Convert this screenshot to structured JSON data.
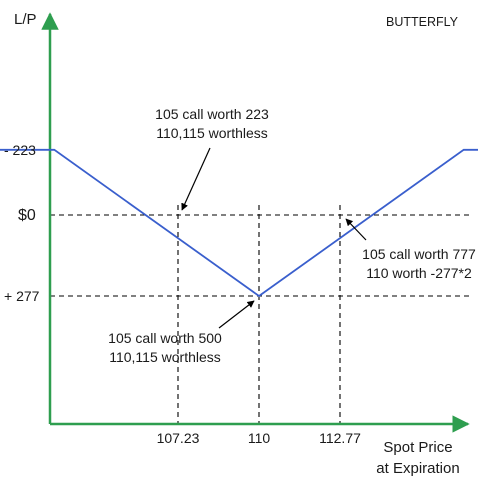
{
  "chart_data": {
    "type": "line",
    "title": "BUTTERFLY",
    "ylabel": "L/P",
    "xlabel_lines": [
      "Spot Price",
      "at Expiration"
    ],
    "x": [
      97.0,
      103.0,
      110.0,
      117.0,
      123.0
    ],
    "y": [
      -223,
      -223,
      277,
      -223,
      -223
    ],
    "y_ticks": [
      {
        "value": -223,
        "label": "- 223"
      },
      {
        "value": 0,
        "label": "$0"
      },
      {
        "value": 277,
        "label": "+ 277"
      }
    ],
    "x_ticks": [
      {
        "value": 107.23,
        "label": "107.23"
      },
      {
        "value": 110,
        "label": "110"
      },
      {
        "value": 112.77,
        "label": "112.77"
      }
    ],
    "reference_lines": {
      "horizontal": [
        0,
        277
      ],
      "vertical": [
        107.23,
        110,
        112.77
      ]
    },
    "annotations": [
      {
        "id": "breakeven-left",
        "lines": [
          "105 call worth 223",
          "110,115 worthless"
        ],
        "target": [
          107.23,
          0
        ]
      },
      {
        "id": "breakeven-right",
        "lines": [
          "105 call worth 777",
          "110 worth -277*2"
        ],
        "target": [
          112.77,
          0
        ]
      },
      {
        "id": "max-point",
        "lines": [
          "105 call worth 500",
          "110,115 worthless"
        ],
        "target": [
          110,
          277
        ]
      }
    ],
    "colors": {
      "axis": "#2e9e4f",
      "series": "#3a5fcd",
      "guide": "#000000",
      "text": "#1a1a1a"
    }
  }
}
